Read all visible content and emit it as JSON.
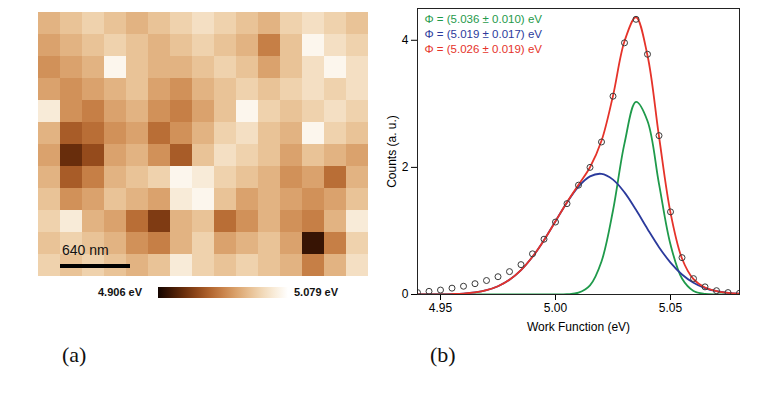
{
  "chart_data": [
    {
      "type": "heatmap",
      "panel": "(a)",
      "scale_bar": "640 nm",
      "tick_labels": false,
      "colorbar": {
        "range": [
          4.906,
          5.079
        ],
        "ticks": [
          {
            "value": 4.906,
            "label": "4.906 eV"
          },
          {
            "value": 5.079,
            "label": "5.079 eV"
          }
        ]
      },
      "cells": [
        [
          5.02,
          5.03,
          5.04,
          5.03,
          5.02,
          5.03,
          5.04,
          5.05,
          5.04,
          5.03,
          5.02,
          5.04,
          5.05,
          5.04,
          5.03
        ],
        [
          5.01,
          5.02,
          5.03,
          5.04,
          5.03,
          5.02,
          5.03,
          5.04,
          5.03,
          5.02,
          4.99,
          5.03,
          5.07,
          5.05,
          5.04
        ],
        [
          5.0,
          5.01,
          5.02,
          5.07,
          5.03,
          5.02,
          5.02,
          5.03,
          5.04,
          5.03,
          5.01,
          5.03,
          5.05,
          5.07,
          5.05
        ],
        [
          5.01,
          5.0,
          5.01,
          5.02,
          5.03,
          5.01,
          5.0,
          5.02,
          5.03,
          5.04,
          5.03,
          5.04,
          5.05,
          5.04,
          5.05
        ],
        [
          5.06,
          5.0,
          4.99,
          5.01,
          5.02,
          5.0,
          4.99,
          5.01,
          5.03,
          5.07,
          5.04,
          5.03,
          5.04,
          5.05,
          5.04
        ],
        [
          5.02,
          4.97,
          4.98,
          5.0,
          5.01,
          4.98,
          5.0,
          5.02,
          5.04,
          5.05,
          5.03,
          5.02,
          5.07,
          5.04,
          5.03
        ],
        [
          5.01,
          4.94,
          4.96,
          5.01,
          5.02,
          5.0,
          4.97,
          5.03,
          5.05,
          5.04,
          5.03,
          5.01,
          5.03,
          5.02,
          5.01
        ],
        [
          5.02,
          4.97,
          4.99,
          5.02,
          5.03,
          5.04,
          5.07,
          5.06,
          5.04,
          5.03,
          5.02,
          5.0,
          5.01,
          4.98,
          5.02
        ],
        [
          5.03,
          5.0,
          5.01,
          5.03,
          5.02,
          5.01,
          5.06,
          5.07,
          5.03,
          5.01,
          5.02,
          5.01,
          5.0,
          5.01,
          5.03
        ],
        [
          5.04,
          5.06,
          5.02,
          5.01,
          4.98,
          4.95,
          5.02,
          5.03,
          4.98,
          5.0,
          5.02,
          5.0,
          4.99,
          5.02,
          5.06
        ],
        [
          5.03,
          5.04,
          5.03,
          5.02,
          5.0,
          4.99,
          5.02,
          5.04,
          5.01,
          5.02,
          5.03,
          5.01,
          4.92,
          4.99,
          5.04
        ],
        [
          5.04,
          5.03,
          5.04,
          5.03,
          5.02,
          5.03,
          5.06,
          5.04,
          5.03,
          5.04,
          5.03,
          5.02,
          4.99,
          5.02,
          5.05
        ]
      ]
    },
    {
      "type": "line",
      "panel": "(b)",
      "xlabel": "Work Function (eV)",
      "ylabel": "Counts (a. u.)",
      "xlim": [
        4.94,
        5.08
      ],
      "ylim": [
        0,
        4.5
      ],
      "xticks": [
        4.95,
        {
          "value": 5,
          "label": "5.00"
        },
        5.05
      ],
      "yticks": [
        0,
        2,
        4
      ],
      "grid": false,
      "legend": "top-left",
      "x": [
        4.94,
        4.945,
        4.95,
        4.955,
        4.96,
        4.965,
        4.97,
        4.975,
        4.98,
        4.985,
        4.99,
        4.995,
        5.0,
        5.005,
        5.01,
        5.015,
        5.02,
        5.025,
        5.03,
        5.035,
        5.04,
        5.045,
        5.05,
        5.055,
        5.06,
        5.065,
        5.07,
        5.075,
        5.08
      ],
      "series": [
        {
          "name": "Φ = (5.036 ± 0.010) eV",
          "type": "line",
          "color": "#1f9a4b",
          "values": [
            0,
            0,
            0,
            0,
            0,
            0,
            0,
            0,
            0,
            0,
            0,
            0,
            0,
            0.004,
            0.028,
            0.144,
            0.52,
            1.321,
            2.378,
            3.03,
            2.73,
            1.741,
            0.786,
            0.251,
            0.056,
            0.009,
            0.001,
            0,
            0
          ]
        },
        {
          "name": "Φ = (5.019 ± 0.017) eV",
          "type": "line",
          "color": "#2b3a9c",
          "values": [
            0.0,
            0.001,
            0.003,
            0.007,
            0.015,
            0.033,
            0.068,
            0.13,
            0.231,
            0.383,
            0.593,
            0.855,
            1.152,
            1.448,
            1.698,
            1.858,
            1.898,
            1.807,
            1.607,
            1.332,
            1.031,
            0.745,
            0.502,
            0.315,
            0.185,
            0.101,
            0.052,
            0.025,
            0.011
          ]
        },
        {
          "name": "Φ = (5.026 ± 0.019) eV",
          "type": "line",
          "color": "#e5332a",
          "values": [
            0.0,
            0.001,
            0.003,
            0.007,
            0.015,
            0.033,
            0.068,
            0.13,
            0.231,
            0.383,
            0.593,
            0.855,
            1.153,
            1.452,
            1.726,
            2.002,
            2.418,
            3.128,
            3.985,
            4.362,
            3.761,
            2.486,
            1.288,
            0.566,
            0.241,
            0.11,
            0.053,
            0.025,
            0.011
          ]
        },
        {
          "type": "scatter",
          "marker": "circle",
          "color": "#3a3a3a",
          "values": [
            0.03,
            0.05,
            0.07,
            0.1,
            0.13,
            0.17,
            0.22,
            0.28,
            0.36,
            0.47,
            0.64,
            0.87,
            1.14,
            1.43,
            1.72,
            2.0,
            2.4,
            3.12,
            3.96,
            4.33,
            3.78,
            2.5,
            1.3,
            0.58,
            0.25,
            0.12,
            0.06,
            0.03,
            0.02
          ]
        }
      ]
    }
  ]
}
